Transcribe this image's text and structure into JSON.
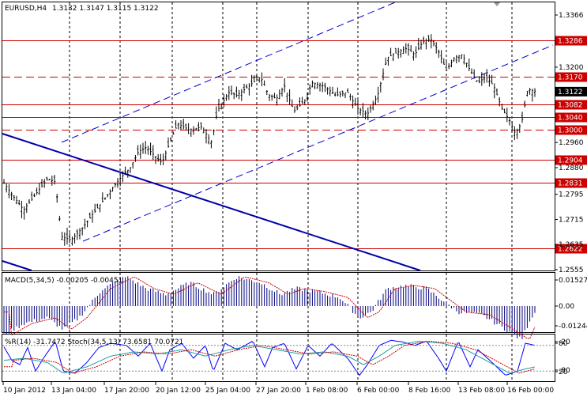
{
  "header": {
    "symbol": "EURUSD,H4",
    "ohlc": "1.3132 1.3147 1.3115 1.3122"
  },
  "main_chart": {
    "price_ticks": [
      "1.3366",
      "1.3200",
      "1.3122",
      "1.2960",
      "1.2880",
      "1.2795",
      "1.2715",
      "1.2635",
      "1.2555"
    ],
    "hlines": [
      {
        "label": "1.3286",
        "value": 1.3286,
        "dashed": false
      },
      {
        "label": "1.3170",
        "value": 1.317,
        "dashed": true
      },
      {
        "label": "1.3082",
        "value": 1.3082,
        "dashed": false
      },
      {
        "label": "1.3040",
        "value": 1.304,
        "dashed": false
      },
      {
        "label": "1.3000",
        "value": 1.3,
        "dashed": true
      },
      {
        "label": "1.2904",
        "value": 1.2904,
        "dashed": false
      },
      {
        "label": "1.2831",
        "value": 1.2831,
        "dashed": false
      },
      {
        "label": "1.2622",
        "value": 1.2622,
        "dashed": false
      }
    ],
    "current_price": "1.3122",
    "line_color": "#cc0000",
    "channel_color": "#0000cc"
  },
  "macd": {
    "label": "MACD(5,34,5) -0.00205 -0.00451",
    "ticks": [
      "0.01527",
      "0.00",
      "-0.01244"
    ]
  },
  "oscillator": {
    "label": "%R(14) -31.7472  Stoch(34,5,13) 73.6581 70.0721",
    "ticks": [
      "-20",
      "80",
      "-80",
      "20"
    ]
  },
  "time_axis": [
    "10 Jan 2012",
    "13 Jan 04:00",
    "17 Jan 20:00",
    "20 Jan 12:00",
    "25 Jan 04:00",
    "27 Jan 20:00",
    "1 Feb 08:00",
    "6 Feb 00:00",
    "8 Feb 16:00",
    "13 Feb 08:00",
    "16 Feb 00:00"
  ]
}
